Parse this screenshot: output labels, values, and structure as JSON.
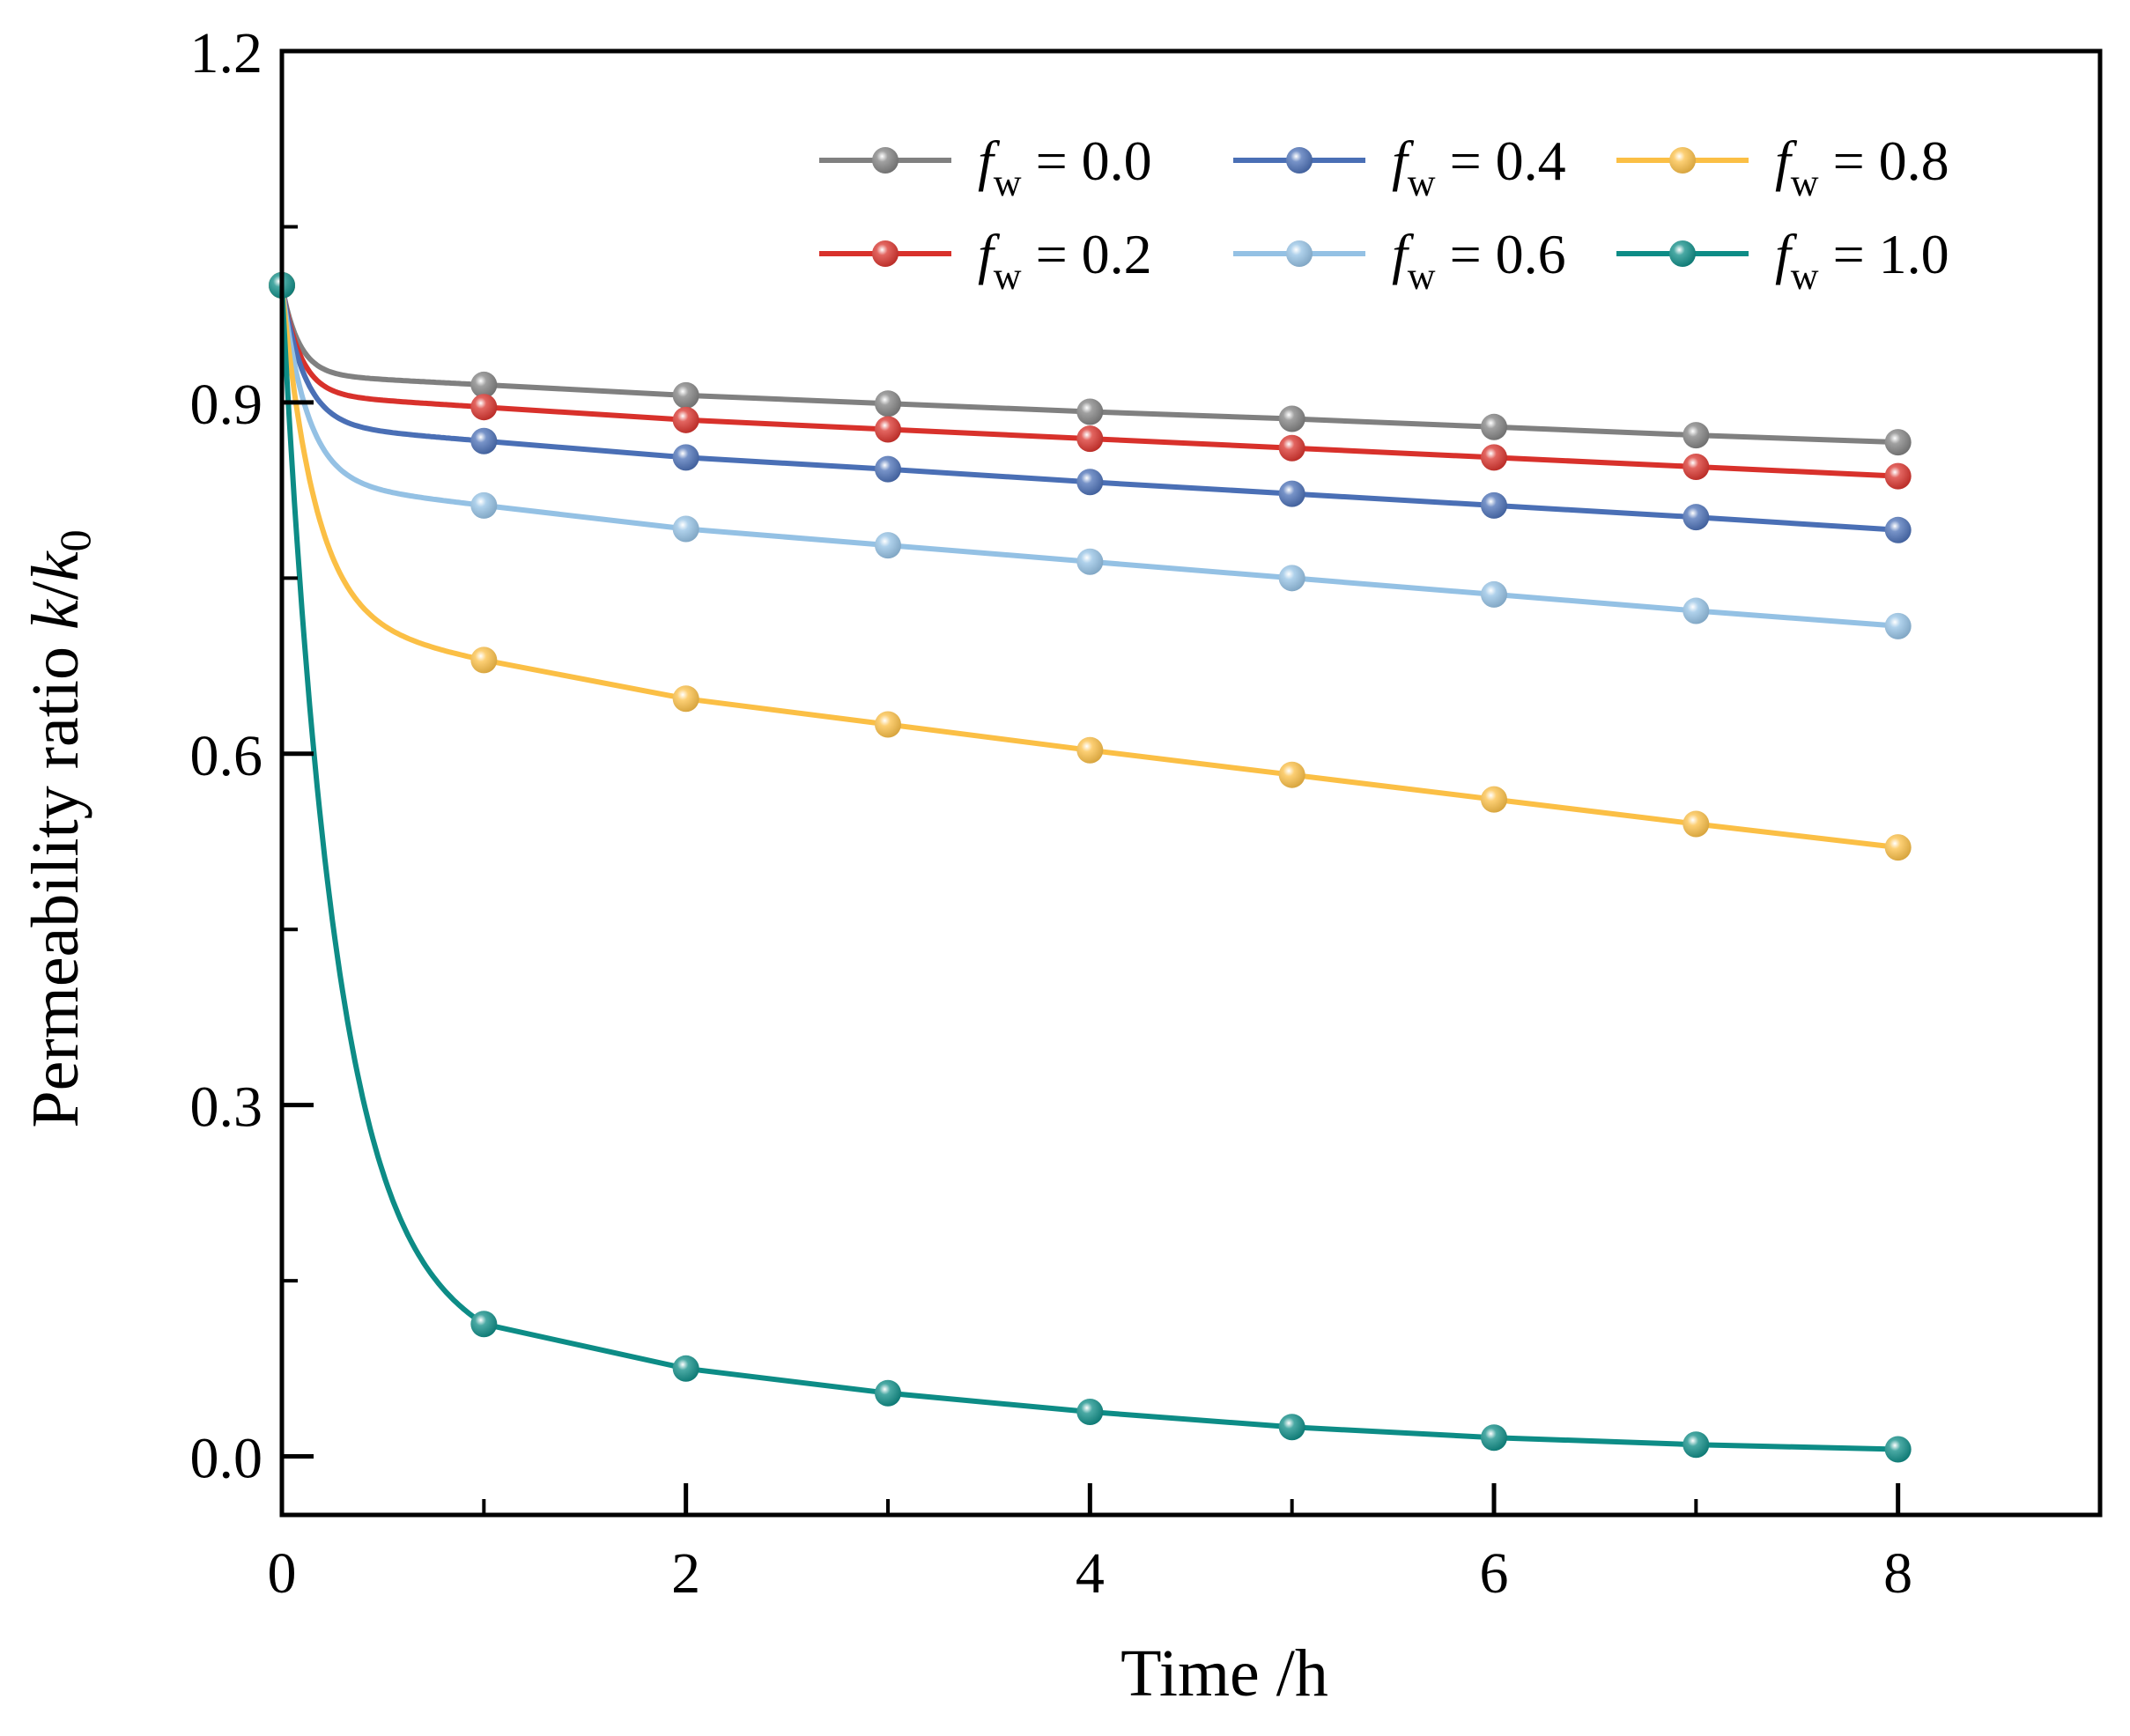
{
  "chart_data": {
    "type": "line",
    "title": "",
    "xlabel": "Time /h",
    "ylabel": {
      "prefix": "Permeability ratio ",
      "var1": "k",
      "slash": "/",
      "var2": "k",
      "sub": "0"
    },
    "xlim": [
      0,
      9
    ],
    "ylim": [
      -0.05,
      1.2
    ],
    "x_ticks": [
      0,
      2,
      4,
      6,
      8
    ],
    "x_tick_labels": [
      "0",
      "2",
      "4",
      "6",
      "8"
    ],
    "y_ticks": [
      0.0,
      0.3,
      0.6,
      0.9,
      1.2
    ],
    "y_tick_labels": [
      "0.0",
      "0.3",
      "0.6",
      "0.9",
      "1.2"
    ],
    "y_minor_ticks": [
      0.15,
      0.45,
      0.75,
      1.05
    ],
    "grid": false,
    "legend_position": "top-right",
    "x": [
      0,
      1,
      2,
      3,
      4,
      5,
      6,
      7,
      8
    ],
    "series": [
      {
        "name": "fw = 0.0",
        "symbol": "f",
        "subscript": "w",
        "value_label": " = 0.0",
        "color": "#808080",
        "decay": 12,
        "values": [
          1.0,
          0.915,
          0.906,
          0.899,
          0.892,
          0.886,
          0.879,
          0.872,
          0.866
        ]
      },
      {
        "name": "fw = 0.2",
        "symbol": "f",
        "subscript": "w",
        "value_label": " = 0.2",
        "color": "#d8312b",
        "decay": 11,
        "values": [
          1.0,
          0.896,
          0.885,
          0.877,
          0.869,
          0.861,
          0.853,
          0.845,
          0.837
        ]
      },
      {
        "name": "fw = 0.4",
        "symbol": "f",
        "subscript": "w",
        "value_label": " = 0.4",
        "color": "#4a6fb5",
        "decay": 9,
        "values": [
          1.0,
          0.867,
          0.853,
          0.843,
          0.832,
          0.822,
          0.812,
          0.802,
          0.791
        ]
      },
      {
        "name": "fw = 0.6",
        "symbol": "f",
        "subscript": "w",
        "value_label": " = 0.6",
        "color": "#94c1e4",
        "decay": 8,
        "values": [
          1.0,
          0.812,
          0.792,
          0.778,
          0.764,
          0.75,
          0.736,
          0.722,
          0.709
        ]
      },
      {
        "name": "fw = 0.8",
        "symbol": "f",
        "subscript": "w",
        "value_label": " = 0.8",
        "color": "#fbbf45",
        "decay": 6,
        "values": [
          1.0,
          0.68,
          0.647,
          0.625,
          0.603,
          0.582,
          0.561,
          0.54,
          0.52
        ]
      },
      {
        "name": "fw = 1.0",
        "symbol": "f",
        "subscript": "w",
        "value_label": " = 1.0",
        "color": "#0d8c86",
        "decay": 3.8,
        "values": [
          1.0,
          0.113,
          0.075,
          0.054,
          0.038,
          0.025,
          0.016,
          0.01,
          0.006
        ]
      }
    ]
  }
}
